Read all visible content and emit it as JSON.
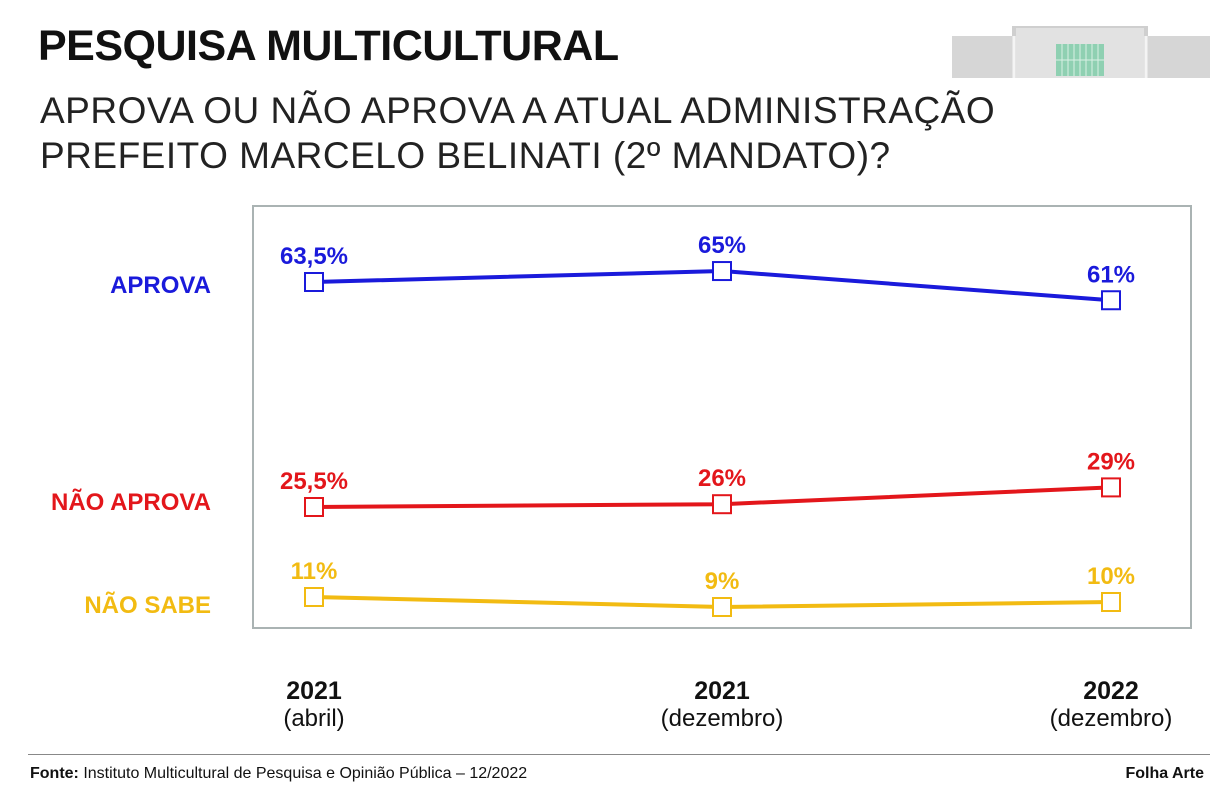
{
  "header": {
    "title": "PESQUISA MULTICULTURAL",
    "subtitle": "APROVA OU NÃO APROVA A ATUAL ADMINISTRAÇÃO PREFEITO MARCELO BELINATI (2º MANDATO)?"
  },
  "chart_data": {
    "type": "line",
    "title": "PESQUISA MULTICULTURAL",
    "subtitle": "APROVA OU NÃO APROVA A ATUAL ADMINISTRAÇÃO PREFEITO MARCELO BELINATI (2º MANDATO)?",
    "categories": [
      {
        "year": "2021",
        "period": "(abril)"
      },
      {
        "year": "2021",
        "period": "(dezembro)"
      },
      {
        "year": "2022",
        "period": "(dezembro)"
      }
    ],
    "series": [
      {
        "name": "APROVA",
        "color": "#1a1adb",
        "values": [
          63.5,
          65,
          61
        ],
        "labels": [
          "63,5%",
          "65%",
          "61%"
        ]
      },
      {
        "name": "NÃO APROVA",
        "color": "#e3161b",
        "values": [
          25.5,
          26,
          29
        ],
        "labels": [
          "25,5%",
          "26%",
          "29%"
        ]
      },
      {
        "name": "NÃO SABE",
        "color": "#f2bb12",
        "values": [
          11,
          9,
          10
        ],
        "labels": [
          "11%",
          "9%",
          "10%"
        ]
      }
    ],
    "xlabel": "",
    "ylabel": "",
    "grid": false,
    "legend": "left"
  },
  "footer": {
    "source_label": "Fonte:",
    "source_text": " Instituto Multicultural de Pesquisa e Opinião Pública – 12/2022",
    "credit": "Folha Arte"
  }
}
